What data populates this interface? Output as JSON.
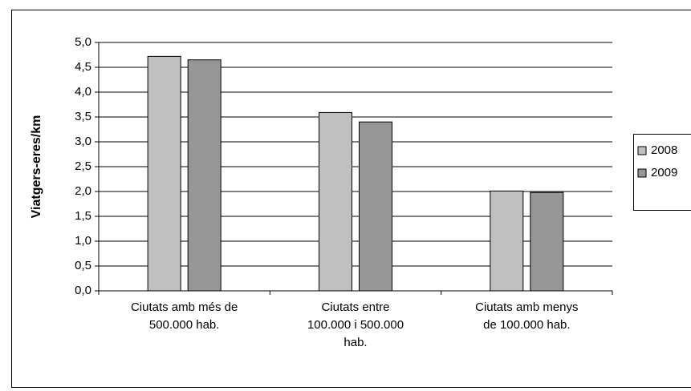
{
  "chart_data": {
    "type": "bar",
    "y_label": "Viatgers-eres/km",
    "categories": [
      "Ciutats amb més de\n500.000 hab.",
      "Ciutats entre\n100.000 i 500.000\nhab.",
      "Ciutats amb menys\nde 100.000 hab."
    ],
    "series": [
      {
        "name": "2008",
        "color": "#c0c0c0",
        "values": [
          4.72,
          3.59,
          2.01
        ]
      },
      {
        "name": "2009",
        "color": "#969696",
        "values": [
          4.65,
          3.4,
          1.98
        ]
      }
    ],
    "ylim": [
      0,
      5
    ],
    "yticks": [
      {
        "value": 0,
        "label": "0,0"
      },
      {
        "value": 0.5,
        "label": "0,5"
      },
      {
        "value": 1,
        "label": "1,0"
      },
      {
        "value": 1.5,
        "label": "1,5"
      },
      {
        "value": 2,
        "label": "2,0"
      },
      {
        "value": 2.5,
        "label": "2,5"
      },
      {
        "value": 3,
        "label": "3,0"
      },
      {
        "value": 3.5,
        "label": "3,5"
      },
      {
        "value": 4,
        "label": "4,0"
      },
      {
        "value": 4.5,
        "label": "4,5"
      },
      {
        "value": 5,
        "label": "5,0"
      }
    ],
    "grid": true,
    "legend": "right"
  }
}
